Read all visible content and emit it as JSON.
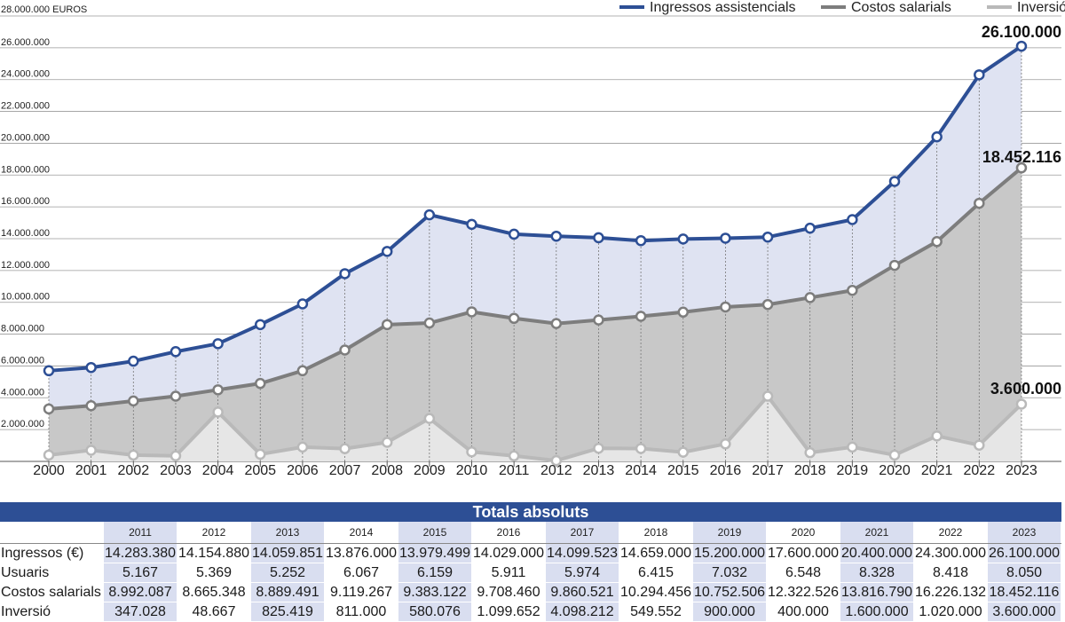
{
  "chart_data": {
    "type": "line",
    "title": "",
    "y_unit_label": "28.000.000 EUROS",
    "ylim": [
      0,
      28000000
    ],
    "y_ticks": [
      "2.000.000",
      "4.000.000",
      "6.000.000",
      "8.000.000",
      "10.000.000",
      "12.000.000",
      "14.000.000",
      "16.000.000",
      "18.000.000",
      "20.000.000",
      "22.000.000",
      "24.000.000",
      "26.000.000"
    ],
    "y_tick_values": [
      2000000,
      4000000,
      6000000,
      8000000,
      10000000,
      12000000,
      14000000,
      16000000,
      18000000,
      20000000,
      22000000,
      24000000,
      26000000
    ],
    "x": [
      "2000",
      "2001",
      "2002",
      "2003",
      "2004",
      "2005",
      "2006",
      "2007",
      "2008",
      "2009",
      "2010",
      "2011",
      "2012",
      "2013",
      "2014",
      "2015",
      "2016",
      "2017",
      "2018",
      "2019",
      "2020",
      "2021",
      "2022",
      "2023"
    ],
    "series": [
      {
        "name": "Ingressos assistencials",
        "color": "#2d4f95",
        "fill": "#dfe3f2",
        "values": [
          5700000,
          5900000,
          6300000,
          6900000,
          7400000,
          8600000,
          9900000,
          11800000,
          13200000,
          15500000,
          14900000,
          14283380,
          14154880,
          14059851,
          13876000,
          13979499,
          14029000,
          14099523,
          14659000,
          15200000,
          17600000,
          20400000,
          24300000,
          26100000
        ]
      },
      {
        "name": "Costos salarials",
        "color": "#7d7d7d",
        "fill": "#c8c8c8",
        "values": [
          3300000,
          3500000,
          3800000,
          4100000,
          4500000,
          4900000,
          5700000,
          7000000,
          8600000,
          8700000,
          9400000,
          8992087,
          8665348,
          8889491,
          9119267,
          9383122,
          9708460,
          9860521,
          10294456,
          10752506,
          12322526,
          13816790,
          16226132,
          18452116
        ]
      },
      {
        "name": "Inversió",
        "color": "#b9b9b9",
        "fill": "#e6e6e6",
        "values": [
          400000,
          700000,
          400000,
          350000,
          3100000,
          450000,
          900000,
          800000,
          1200000,
          2700000,
          600000,
          347028,
          48667,
          825419,
          811000,
          580076,
          1099652,
          4098212,
          549552,
          900000,
          400000,
          1600000,
          1020000,
          3600000
        ]
      }
    ],
    "callouts": [
      "26.100.000",
      "18.452.116",
      "3.600.000"
    ],
    "legend_position": "top-right",
    "grid": true
  },
  "table": {
    "title": "Totals absoluts",
    "years": [
      "2011",
      "2012",
      "2013",
      "2014",
      "2015",
      "2016",
      "2017",
      "2018",
      "2019",
      "2020",
      "2021",
      "2022",
      "2023"
    ],
    "rows": [
      {
        "label": "Ingressos (€)",
        "values": [
          "14.283.380",
          "14.154.880",
          "14.059.851",
          "13.876.000",
          "13.979.499",
          "14.029.000",
          "14.099.523",
          "14.659.000",
          "15.200.000",
          "17.600.000",
          "20.400.000",
          "24.300.000",
          "26.100.000"
        ]
      },
      {
        "label": "Usuaris",
        "values": [
          "5.167",
          "5.369",
          "5.252",
          "6.067",
          "6.159",
          "5.911",
          "5.974",
          "6.415",
          "7.032",
          "6.548",
          "8.328",
          "8.418",
          "8.050"
        ]
      },
      {
        "label": "Costos salarials",
        "values": [
          "8.992.087",
          "8.665.348",
          "8.889.491",
          "9.119.267",
          "9.383.122",
          "9.708.460",
          "9.860.521",
          "10.294.456",
          "10.752.506",
          "12.322.526",
          "13.816.790",
          "16.226.132",
          "18.452.116"
        ]
      },
      {
        "label": "Inversió",
        "values": [
          "347.028",
          "48.667",
          "825.419",
          "811.000",
          "580.076",
          "1.099.652",
          "4.098.212",
          "549.552",
          "900.000",
          "400.000",
          "1.600.000",
          "1.020.000",
          "3.600.000"
        ]
      }
    ]
  }
}
